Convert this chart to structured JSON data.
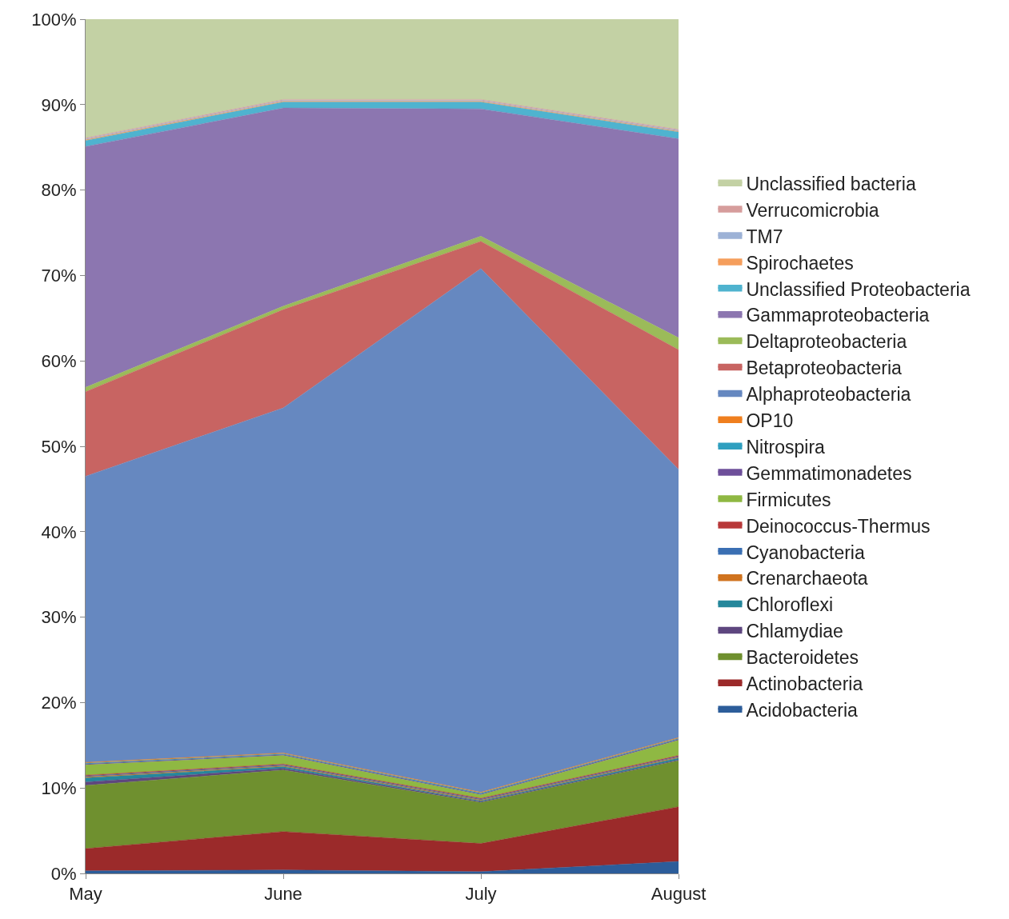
{
  "chart_data": {
    "type": "area",
    "stacked": true,
    "categories": [
      "May",
      "June",
      "July",
      "August"
    ],
    "ylim": [
      0,
      100
    ],
    "yticks": [
      {
        "value": 0,
        "label": "0%"
      },
      {
        "value": 10,
        "label": "10%"
      },
      {
        "value": 20,
        "label": "20%"
      },
      {
        "value": 30,
        "label": "30%"
      },
      {
        "value": 40,
        "label": "40%"
      },
      {
        "value": 50,
        "label": "50%"
      },
      {
        "value": 60,
        "label": "60%"
      },
      {
        "value": 70,
        "label": "70%"
      },
      {
        "value": 80,
        "label": "80%"
      },
      {
        "value": 90,
        "label": "90%"
      },
      {
        "value": 100,
        "label": "100%"
      }
    ],
    "legend": "right",
    "series": [
      {
        "name": "Acidobacteria",
        "color": "#2c5d9a",
        "values": [
          0.3,
          0.4,
          0.2,
          1.4
        ]
      },
      {
        "name": "Actinobacteria",
        "color": "#9b2a2a",
        "values": [
          2.6,
          4.5,
          3.3,
          6.4
        ]
      },
      {
        "name": "Bacteroidetes",
        "color": "#6f902f",
        "values": [
          7.4,
          7.2,
          4.8,
          5.4
        ]
      },
      {
        "name": "Chlamydiae",
        "color": "#5e467f",
        "values": [
          0.4,
          0.2,
          0.1,
          0.1
        ]
      },
      {
        "name": "Chloroflexi",
        "color": "#25879b",
        "values": [
          0.5,
          0.2,
          0.1,
          0.2
        ]
      },
      {
        "name": "Crenarchaeota",
        "color": "#d0731e",
        "values": [
          0.1,
          0.1,
          0.1,
          0.1
        ]
      },
      {
        "name": "Cyanobacteria",
        "color": "#3a6fb3",
        "values": [
          0.1,
          0.1,
          0.1,
          0.1
        ]
      },
      {
        "name": "Deinococcus-Thermus",
        "color": "#b8393a",
        "values": [
          0.1,
          0.1,
          0.1,
          0.1
        ]
      },
      {
        "name": "Firmicutes",
        "color": "#8fb843",
        "values": [
          1.2,
          1.0,
          0.4,
          1.8
        ]
      },
      {
        "name": "Gemmatimonadetes",
        "color": "#6e4f9a",
        "values": [
          0.1,
          0.1,
          0.1,
          0.1
        ]
      },
      {
        "name": "Nitrospira",
        "color": "#2f9fbf",
        "values": [
          0.1,
          0.1,
          0.1,
          0.1
        ]
      },
      {
        "name": "OP10",
        "color": "#ef7f1e",
        "values": [
          0.1,
          0.1,
          0.1,
          0.1
        ]
      },
      {
        "name": "Alphaproteobacteria",
        "color": "#6688c0",
        "values": [
          33.5,
          40.4,
          61.3,
          31.4
        ]
      },
      {
        "name": "Betaproteobacteria",
        "color": "#c86462",
        "values": [
          9.9,
          11.5,
          3.2,
          14.0
        ]
      },
      {
        "name": "Deltaproteobacteria",
        "color": "#9bbb59",
        "values": [
          0.5,
          0.4,
          0.6,
          1.4
        ]
      },
      {
        "name": "Gammaproteobacteria",
        "color": "#8c76b0",
        "values": [
          28.2,
          23.2,
          14.9,
          23.3
        ]
      },
      {
        "name": "Unclassified Proteobacteria",
        "color": "#4fb3cf",
        "values": [
          0.7,
          0.7,
          0.8,
          0.8
        ]
      },
      {
        "name": "Spirochaetes",
        "color": "#f59e5c",
        "values": [
          0.1,
          0.1,
          0.1,
          0.1
        ]
      },
      {
        "name": "TM7",
        "color": "#9db2d6",
        "values": [
          0.1,
          0.1,
          0.1,
          0.1
        ]
      },
      {
        "name": "Verrucomicrobia",
        "color": "#d69d9c",
        "values": [
          0.1,
          0.1,
          0.1,
          0.1
        ]
      },
      {
        "name": "Unclassified bacteria",
        "color": "#c3d1a4",
        "values": [
          13.9,
          9.4,
          9.4,
          12.9
        ]
      }
    ]
  }
}
